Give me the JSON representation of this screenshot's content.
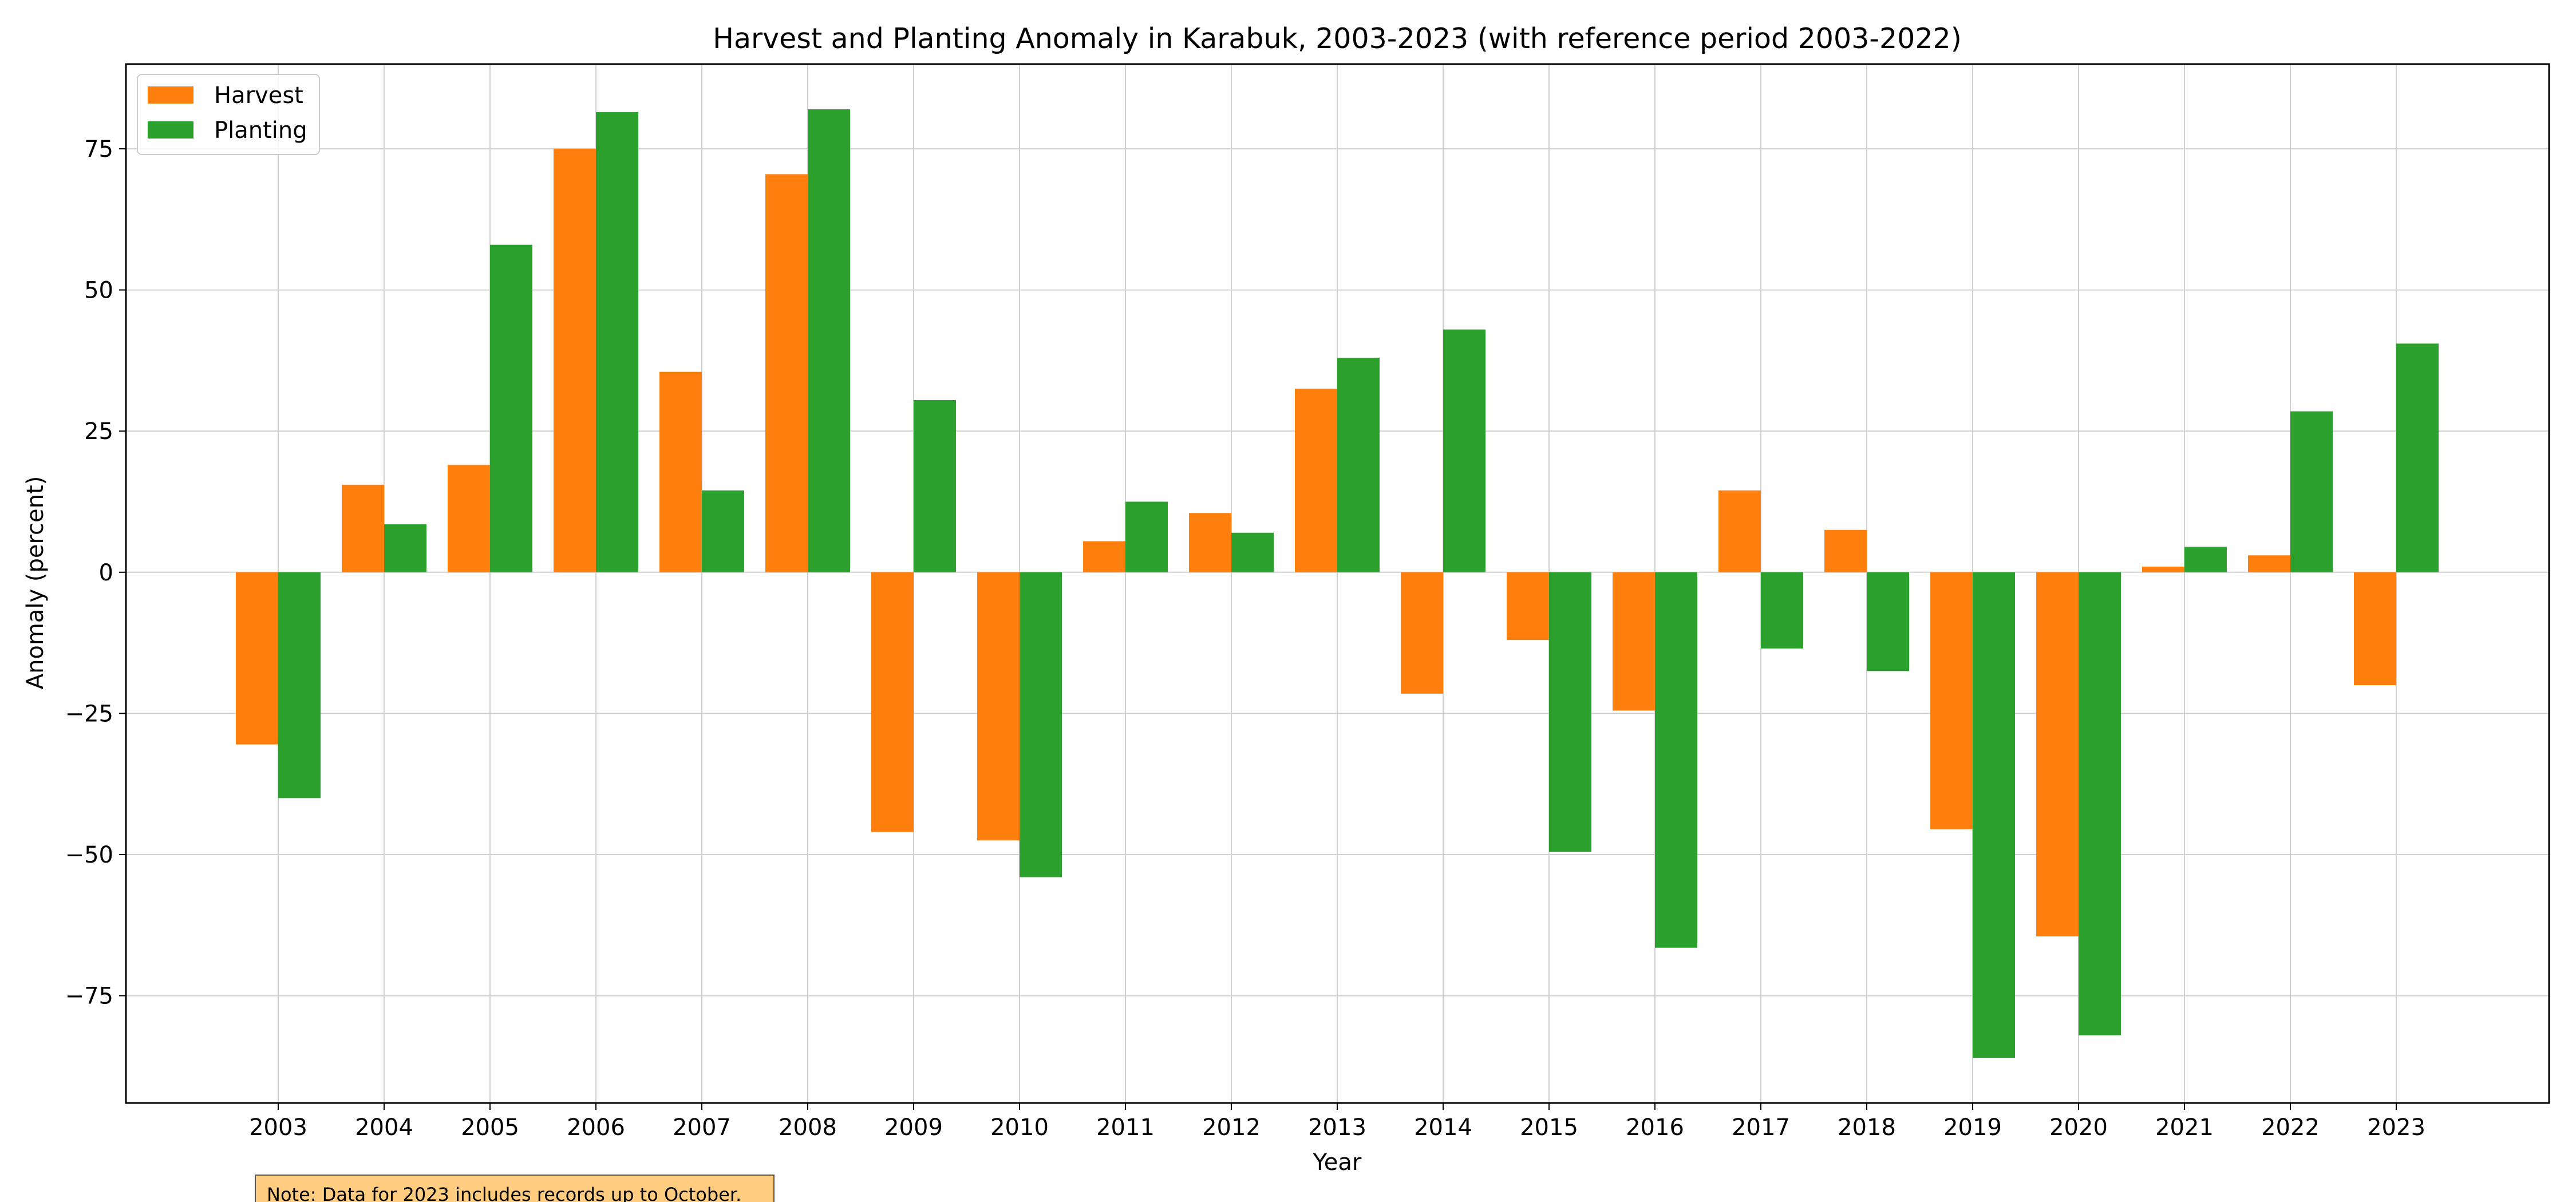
{
  "chart_data": {
    "type": "bar",
    "title": "Harvest and Planting Anomaly in Karabuk, 2003-2023 (with reference period 2003-2022)",
    "xlabel": "Year",
    "ylabel": "Anomaly (percent)",
    "categories": [
      "2003",
      "2004",
      "2005",
      "2006",
      "2007",
      "2008",
      "2009",
      "2010",
      "2011",
      "2012",
      "2013",
      "2014",
      "2015",
      "2016",
      "2017",
      "2018",
      "2019",
      "2020",
      "2021",
      "2022",
      "2023"
    ],
    "series": [
      {
        "name": "Harvest",
        "color": "#ff7f0e",
        "values": [
          -30.5,
          15.5,
          19,
          75,
          35.5,
          70.5,
          -46,
          -47.5,
          5.5,
          10.5,
          32.5,
          -21.5,
          -12,
          -24.5,
          14.5,
          7.5,
          -45.5,
          -64.5,
          1,
          3,
          -20
        ]
      },
      {
        "name": "Planting",
        "color": "#2ca02c",
        "values": [
          -40,
          8.5,
          58,
          81.5,
          14.5,
          82,
          30.5,
          -54,
          12.5,
          7,
          38,
          43,
          -49.5,
          -66.5,
          -13.5,
          -17.5,
          -86,
          -82,
          4.5,
          28.5,
          40.5
        ]
      }
    ],
    "ylim": [
      -94,
      90
    ],
    "yticks": [
      75,
      50,
      25,
      0,
      -25,
      -50,
      -75
    ],
    "ytick_labels": [
      "75",
      "50",
      "25",
      "0",
      "−25",
      "−50",
      "−75"
    ],
    "grid": true,
    "legend_position": "upper-left",
    "note": "Note: Data for 2023 includes records up to October."
  }
}
